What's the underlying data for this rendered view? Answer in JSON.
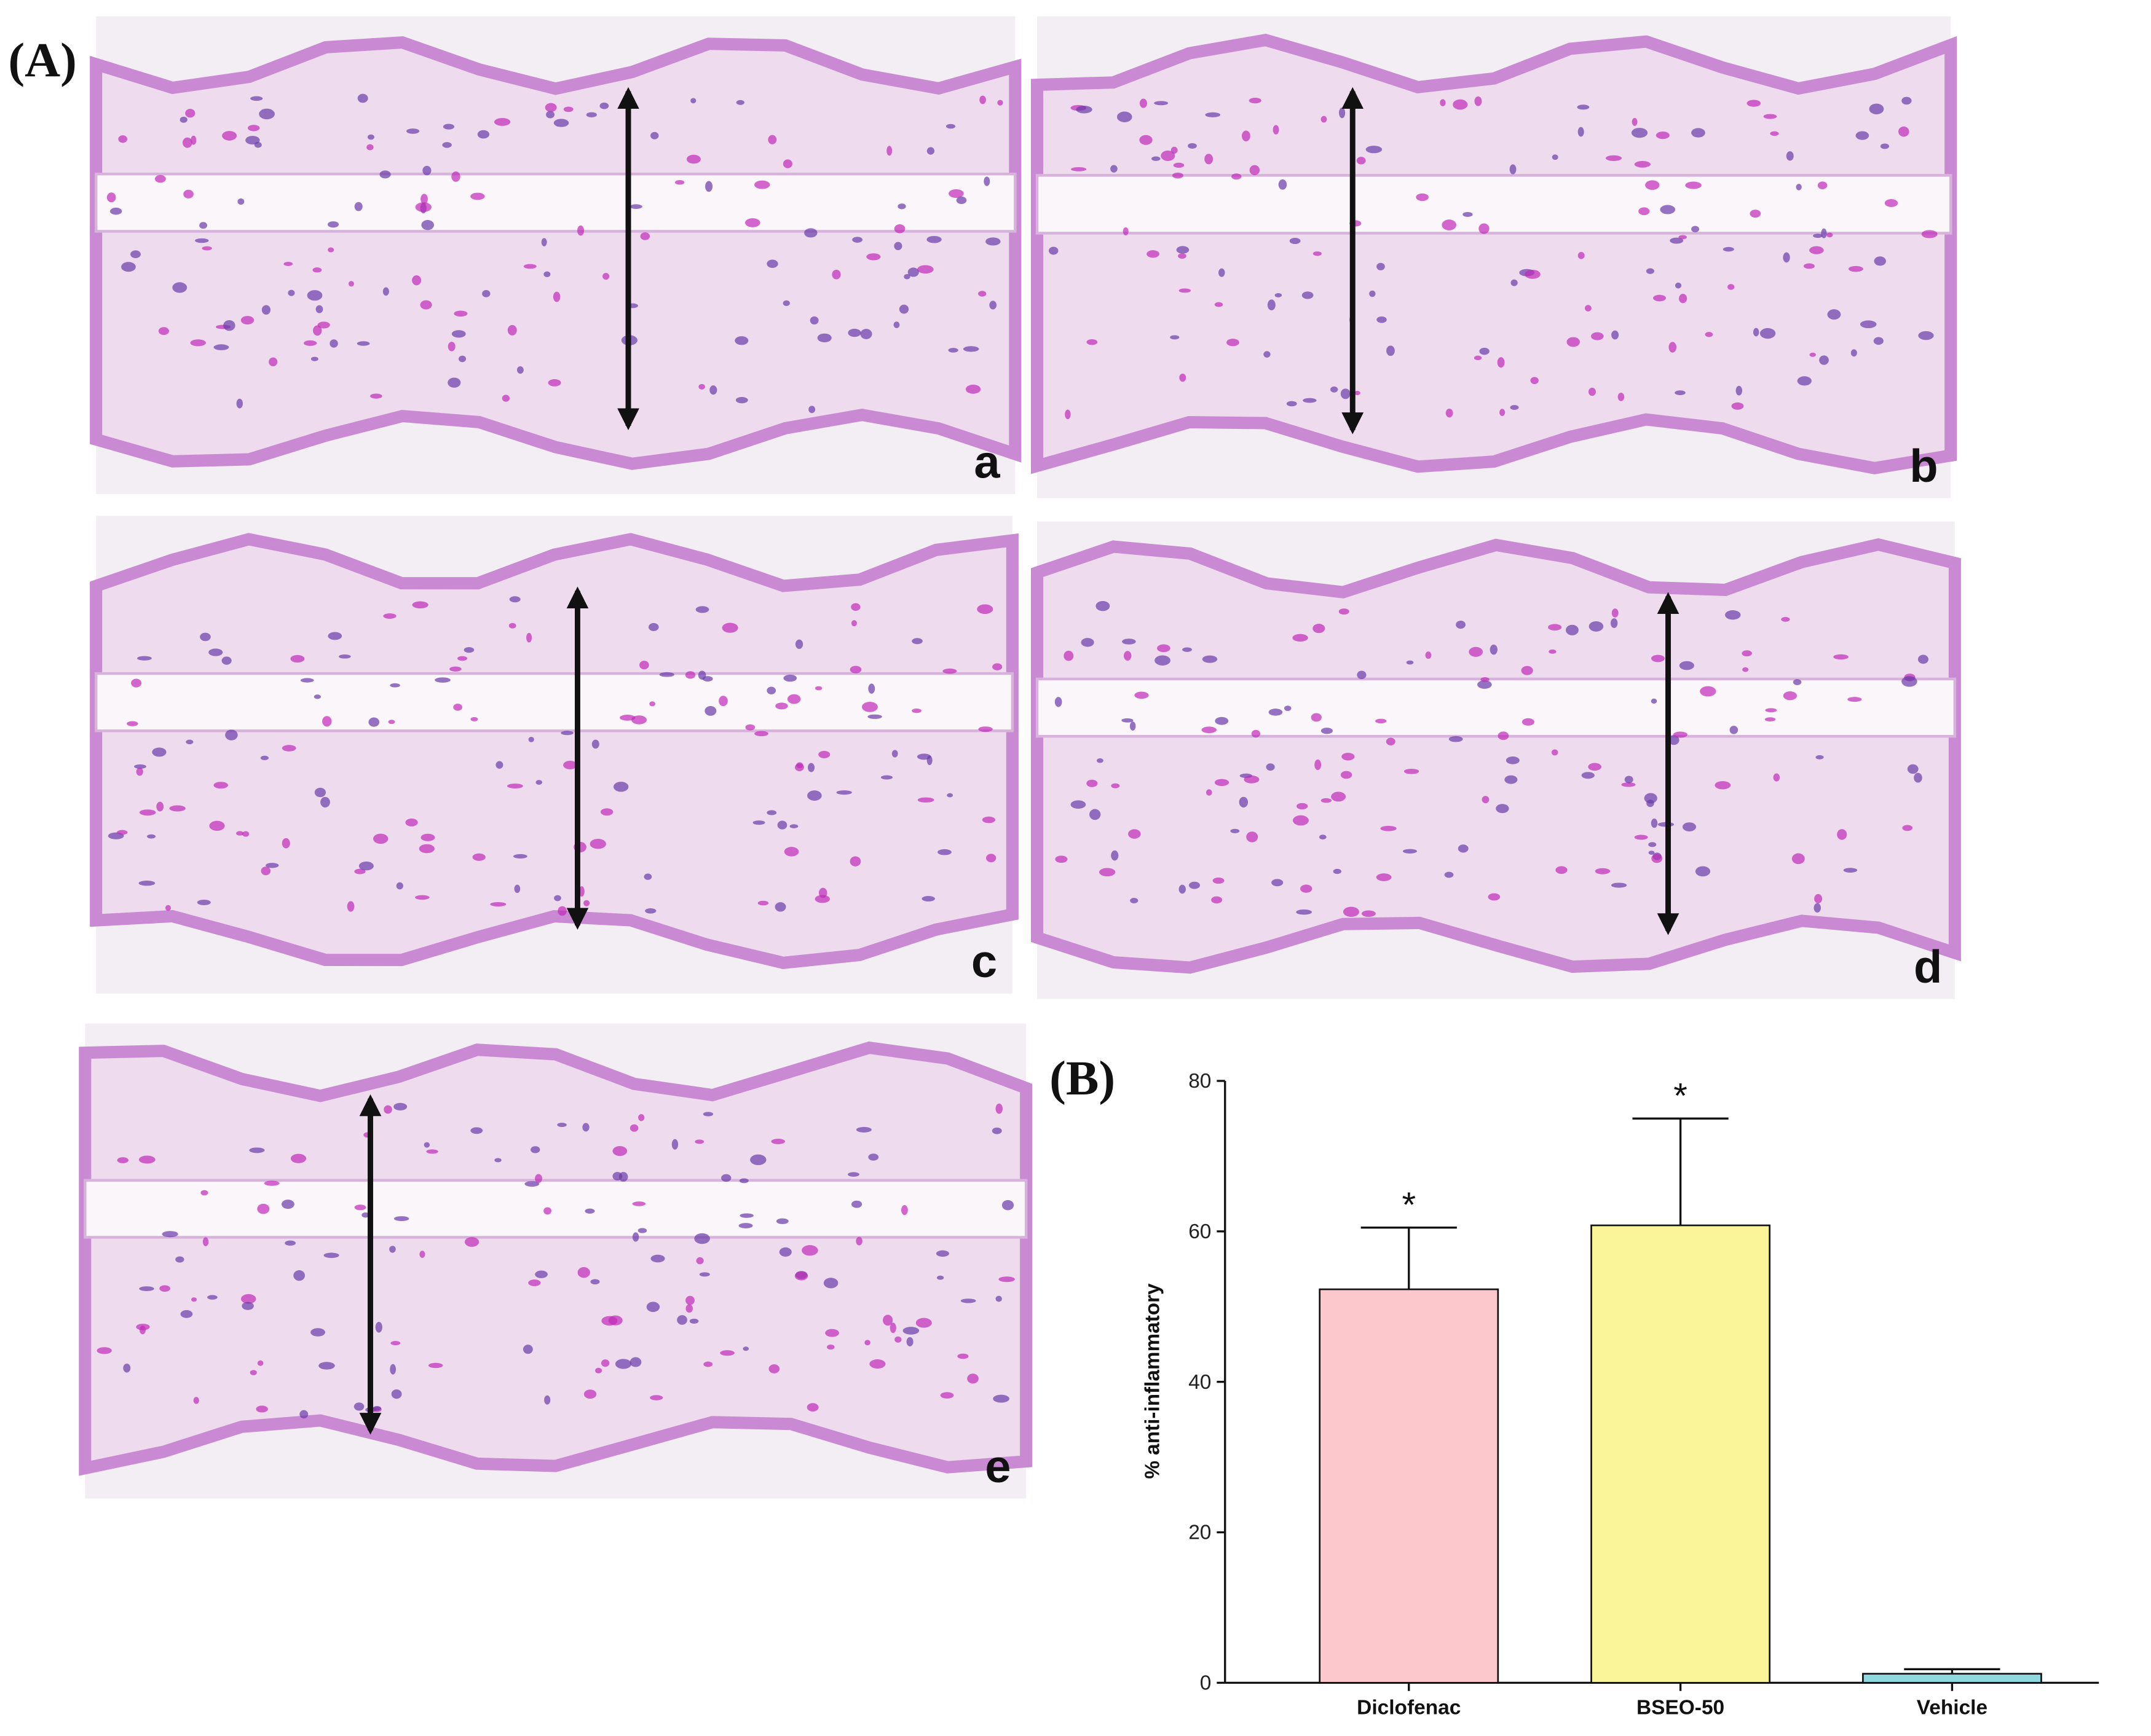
{
  "figure": {
    "panel_a_label": "(A)",
    "panel_b_label": "(B)",
    "image_labels": [
      "a",
      "b",
      "c",
      "d",
      "e"
    ]
  },
  "chart_data": {
    "type": "bar",
    "categories": [
      "Diclofenac",
      "BSEO-50",
      "Vehicle"
    ],
    "values": [
      52.3,
      60.8,
      1.2
    ],
    "errors": [
      8.2,
      14.2,
      0.6
    ],
    "colors": [
      "#fcc8cc",
      "#fbf59a",
      "#8fd8e0"
    ],
    "annotations": [
      "*",
      "*",
      null
    ],
    "y_label": "% anti-inflammatory",
    "ylim": [
      0,
      80
    ],
    "yticks": [
      0,
      20,
      40,
      60,
      80
    ],
    "grid": false
  }
}
